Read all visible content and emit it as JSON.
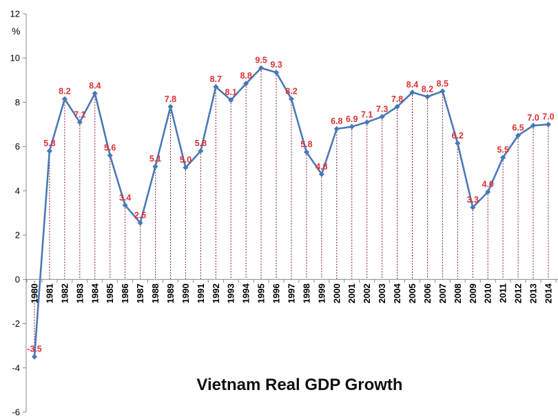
{
  "chart_data": {
    "type": "line",
    "title": "Vietnam Real GDP Growth",
    "ylabel": "%",
    "xlabel": "",
    "ylim": [
      -6,
      12
    ],
    "yticks": [
      -6,
      -4,
      -2,
      0,
      2,
      4,
      6,
      8,
      10,
      12
    ],
    "grid": false,
    "x": [
      "1980",
      "1981",
      "1982",
      "1983",
      "1984",
      "1985",
      "1986",
      "1987",
      "1988",
      "1989",
      "1990",
      "1991",
      "1992",
      "1993",
      "1994",
      "1995",
      "1996",
      "1997",
      "1998",
      "1999",
      "2000",
      "2001",
      "2002",
      "2003",
      "2004",
      "2005",
      "2006",
      "2007",
      "2008",
      "2009",
      "2010",
      "2011",
      "2012",
      "2013",
      "2014"
    ],
    "series": [
      {
        "values": [
          -3.5,
          5.8,
          8.15,
          7.1,
          8.4,
          5.6,
          3.35,
          2.55,
          5.1,
          7.8,
          5.05,
          5.8,
          8.7,
          8.1,
          8.85,
          9.55,
          9.35,
          8.15,
          5.75,
          4.75,
          6.8,
          6.9,
          7.1,
          7.35,
          7.8,
          8.45,
          8.25,
          8.5,
          6.15,
          3.25,
          3.95,
          5.5,
          6.5,
          6.95,
          7.0
        ],
        "labels": [
          "-3.5",
          "5.8",
          "8.2",
          "7.1",
          "8.4",
          "5.6",
          "3.4",
          "2.5",
          "5.1",
          "7.8",
          "5.0",
          "5.8",
          "8.7",
          "8.1",
          "8.8",
          "9.5",
          "9.3",
          "8.2",
          "5.8",
          "4.8",
          "6.8",
          "6.9",
          "7.1",
          "7.3",
          "7.8",
          "8.4",
          "8.2",
          "8.5",
          "6.2",
          "3.3",
          "4.0",
          "5.5",
          "6.5",
          "7.0",
          "7.0"
        ],
        "color": "#4a78b6",
        "label_color": "#e03030"
      }
    ]
  }
}
